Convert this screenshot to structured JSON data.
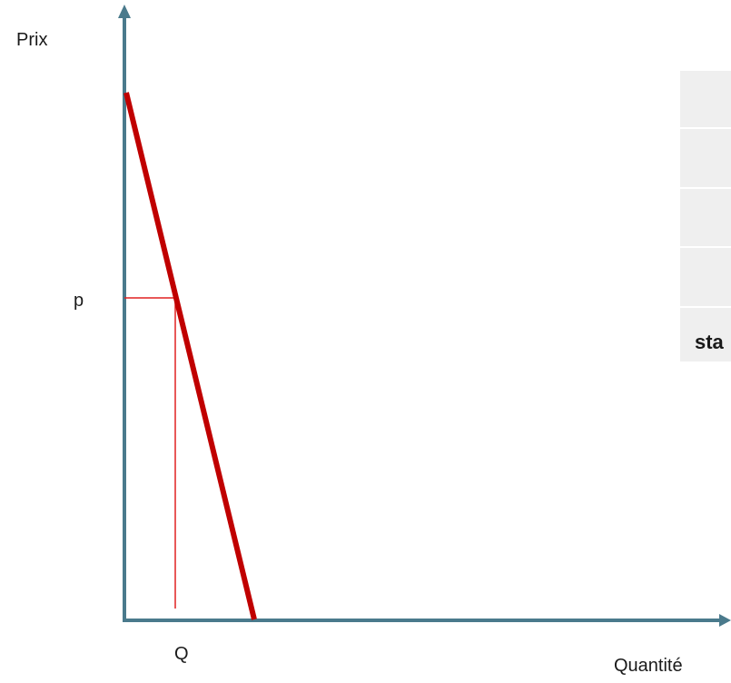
{
  "axes": {
    "y_label": "Prix",
    "x_label": "Quantité",
    "axis_color": "#4a7a8c"
  },
  "demand_curve": {
    "color": "#c00000"
  },
  "markers": {
    "price_label": "p",
    "quantity_label": "Q",
    "guide_color": "#e02020"
  },
  "side_table": {
    "row_count": 5,
    "visible_text": "sta",
    "background": "#efefef"
  }
}
